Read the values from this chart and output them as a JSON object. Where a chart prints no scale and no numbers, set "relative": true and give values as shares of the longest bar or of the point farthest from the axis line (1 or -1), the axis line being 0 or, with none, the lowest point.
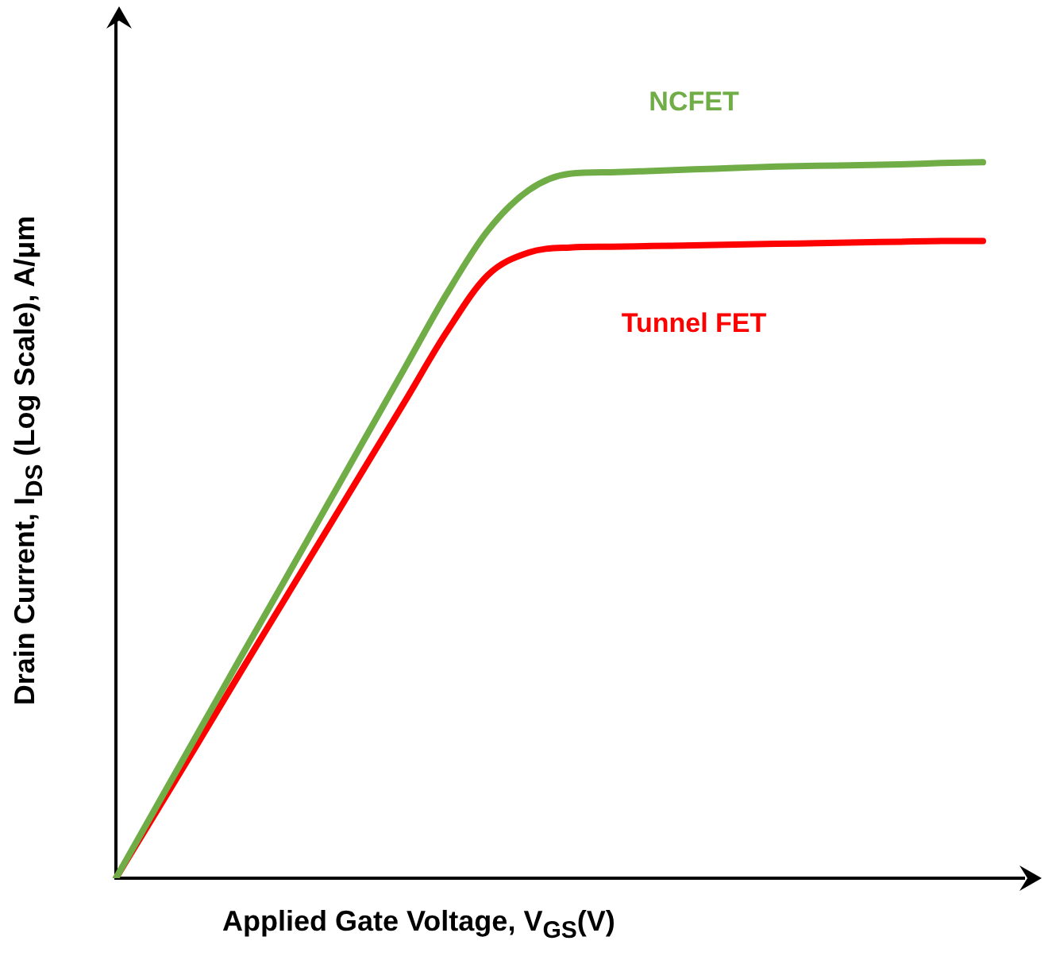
{
  "chart_data": {
    "type": "line",
    "relative": true,
    "xlabel": "Applied Gate Voltage, V$_{GS}$(V)",
    "ylabel": "Drain Current, I$_{DS}$ (Log Scale), A/μm",
    "categories": [
      null,
      null,
      null,
      null,
      null,
      null,
      null,
      null,
      null,
      null,
      null,
      null,
      null,
      null,
      null,
      null,
      null,
      null,
      null,
      null,
      null,
      null,
      null
    ],
    "series": [
      {
        "name": "NCFET",
        "color": "#70ad47",
        "values": [
          0,
          0.102,
          0.204,
          0.306,
          0.407,
          0.509,
          0.611,
          0.713,
          0.815,
          0.904,
          0.961,
          0.984,
          0.986,
          0.988,
          0.99,
          0.992,
          0.994,
          0.995,
          0.996,
          0.997,
          0.999,
          1,
          null
        ]
      },
      {
        "name": "Tunnel FET",
        "color": "#ff0000",
        "values": [
          0,
          0.095,
          0.19,
          0.286,
          0.381,
          0.476,
          0.571,
          0.666,
          0.762,
          0.842,
          0.874,
          0.881,
          0.882,
          0.883,
          0.884,
          0.885,
          0.886,
          0.887,
          0.888,
          0.889,
          0.89,
          0.89,
          null
        ]
      }
    ],
    "grid": false,
    "legend": false,
    "marker": "none",
    "line_style": "solid"
  }
}
